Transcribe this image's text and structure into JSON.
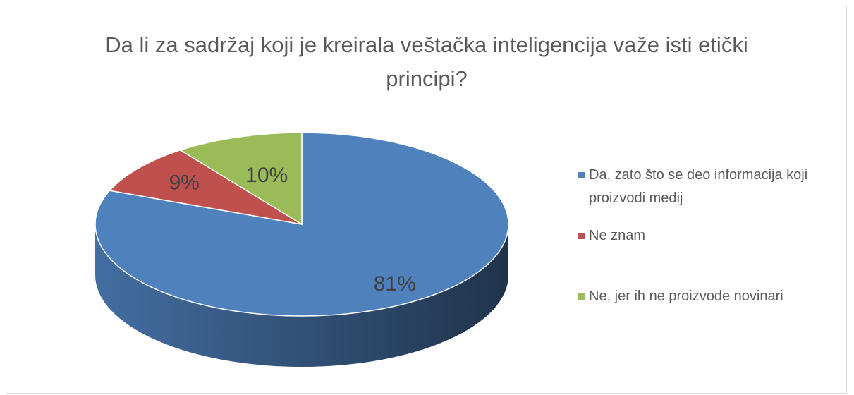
{
  "chart_data": {
    "type": "pie",
    "title": "Da li za sadržaj koji je kreirala veštačka inteligencija važe isti etički principi?",
    "categories": [
      "Da, zato što se deo informacija koji proizvodi medij",
      "Ne znam",
      "Ne, jer ih ne proizvode novinari"
    ],
    "values": [
      81,
      9,
      10
    ],
    "value_labels": [
      "81%",
      "9%",
      "10%"
    ],
    "colors": [
      "#4f81bd",
      "#c0504d",
      "#9bbb59"
    ],
    "legend": "right"
  }
}
